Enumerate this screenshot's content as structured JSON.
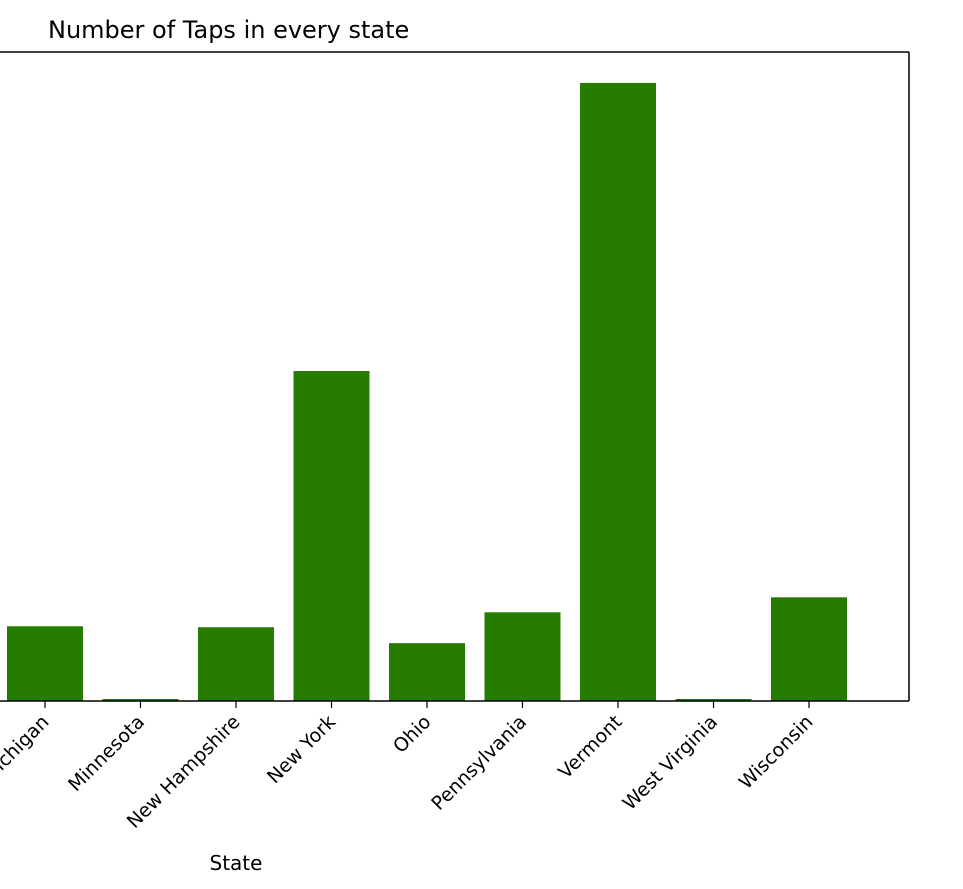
{
  "chart_data": {
    "type": "bar",
    "title": "Number of Taps in every state",
    "xlabel": "State",
    "ylabel": "",
    "categories": [
      "Michigan",
      "Minnesota",
      "New Hampshire",
      "New York",
      "Ohio",
      "Pennsylvania",
      "Vermont",
      "West Virginia",
      "Wisconsin"
    ],
    "values": [
      75,
      2,
      74,
      331,
      58,
      89,
      620,
      2,
      104
    ],
    "partial_leftmost_tick_visible": true,
    "ylim": [
      0,
      651
    ],
    "grid": false,
    "bar_color": "#267c00"
  }
}
